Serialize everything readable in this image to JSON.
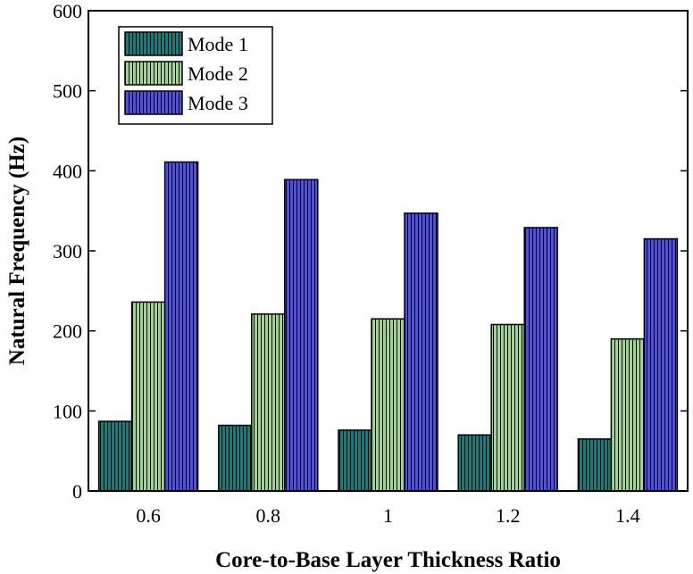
{
  "chart_data": {
    "type": "bar",
    "title": "",
    "xlabel": "Core-to-Base Layer Thickness Ratio",
    "ylabel": "Natural Frequency (Hz)",
    "categories": [
      "0.6",
      "0.8",
      "1",
      "1.2",
      "1.4"
    ],
    "ylim": [
      0,
      600
    ],
    "yticks": [
      "0",
      "100",
      "200",
      "300",
      "400",
      "500",
      "600"
    ],
    "grid": false,
    "legend_position": "top-left",
    "series": [
      {
        "name": "Mode 1",
        "color": "#0f7f7f",
        "values": [
          87,
          82,
          76,
          70,
          65
        ]
      },
      {
        "name": "Mode 2",
        "color": "#9ad98a",
        "values": [
          236,
          221,
          215,
          208,
          190
        ]
      },
      {
        "name": "Mode 3",
        "color": "#4e4ee8",
        "values": [
          411,
          389,
          347,
          329,
          315
        ]
      }
    ]
  }
}
